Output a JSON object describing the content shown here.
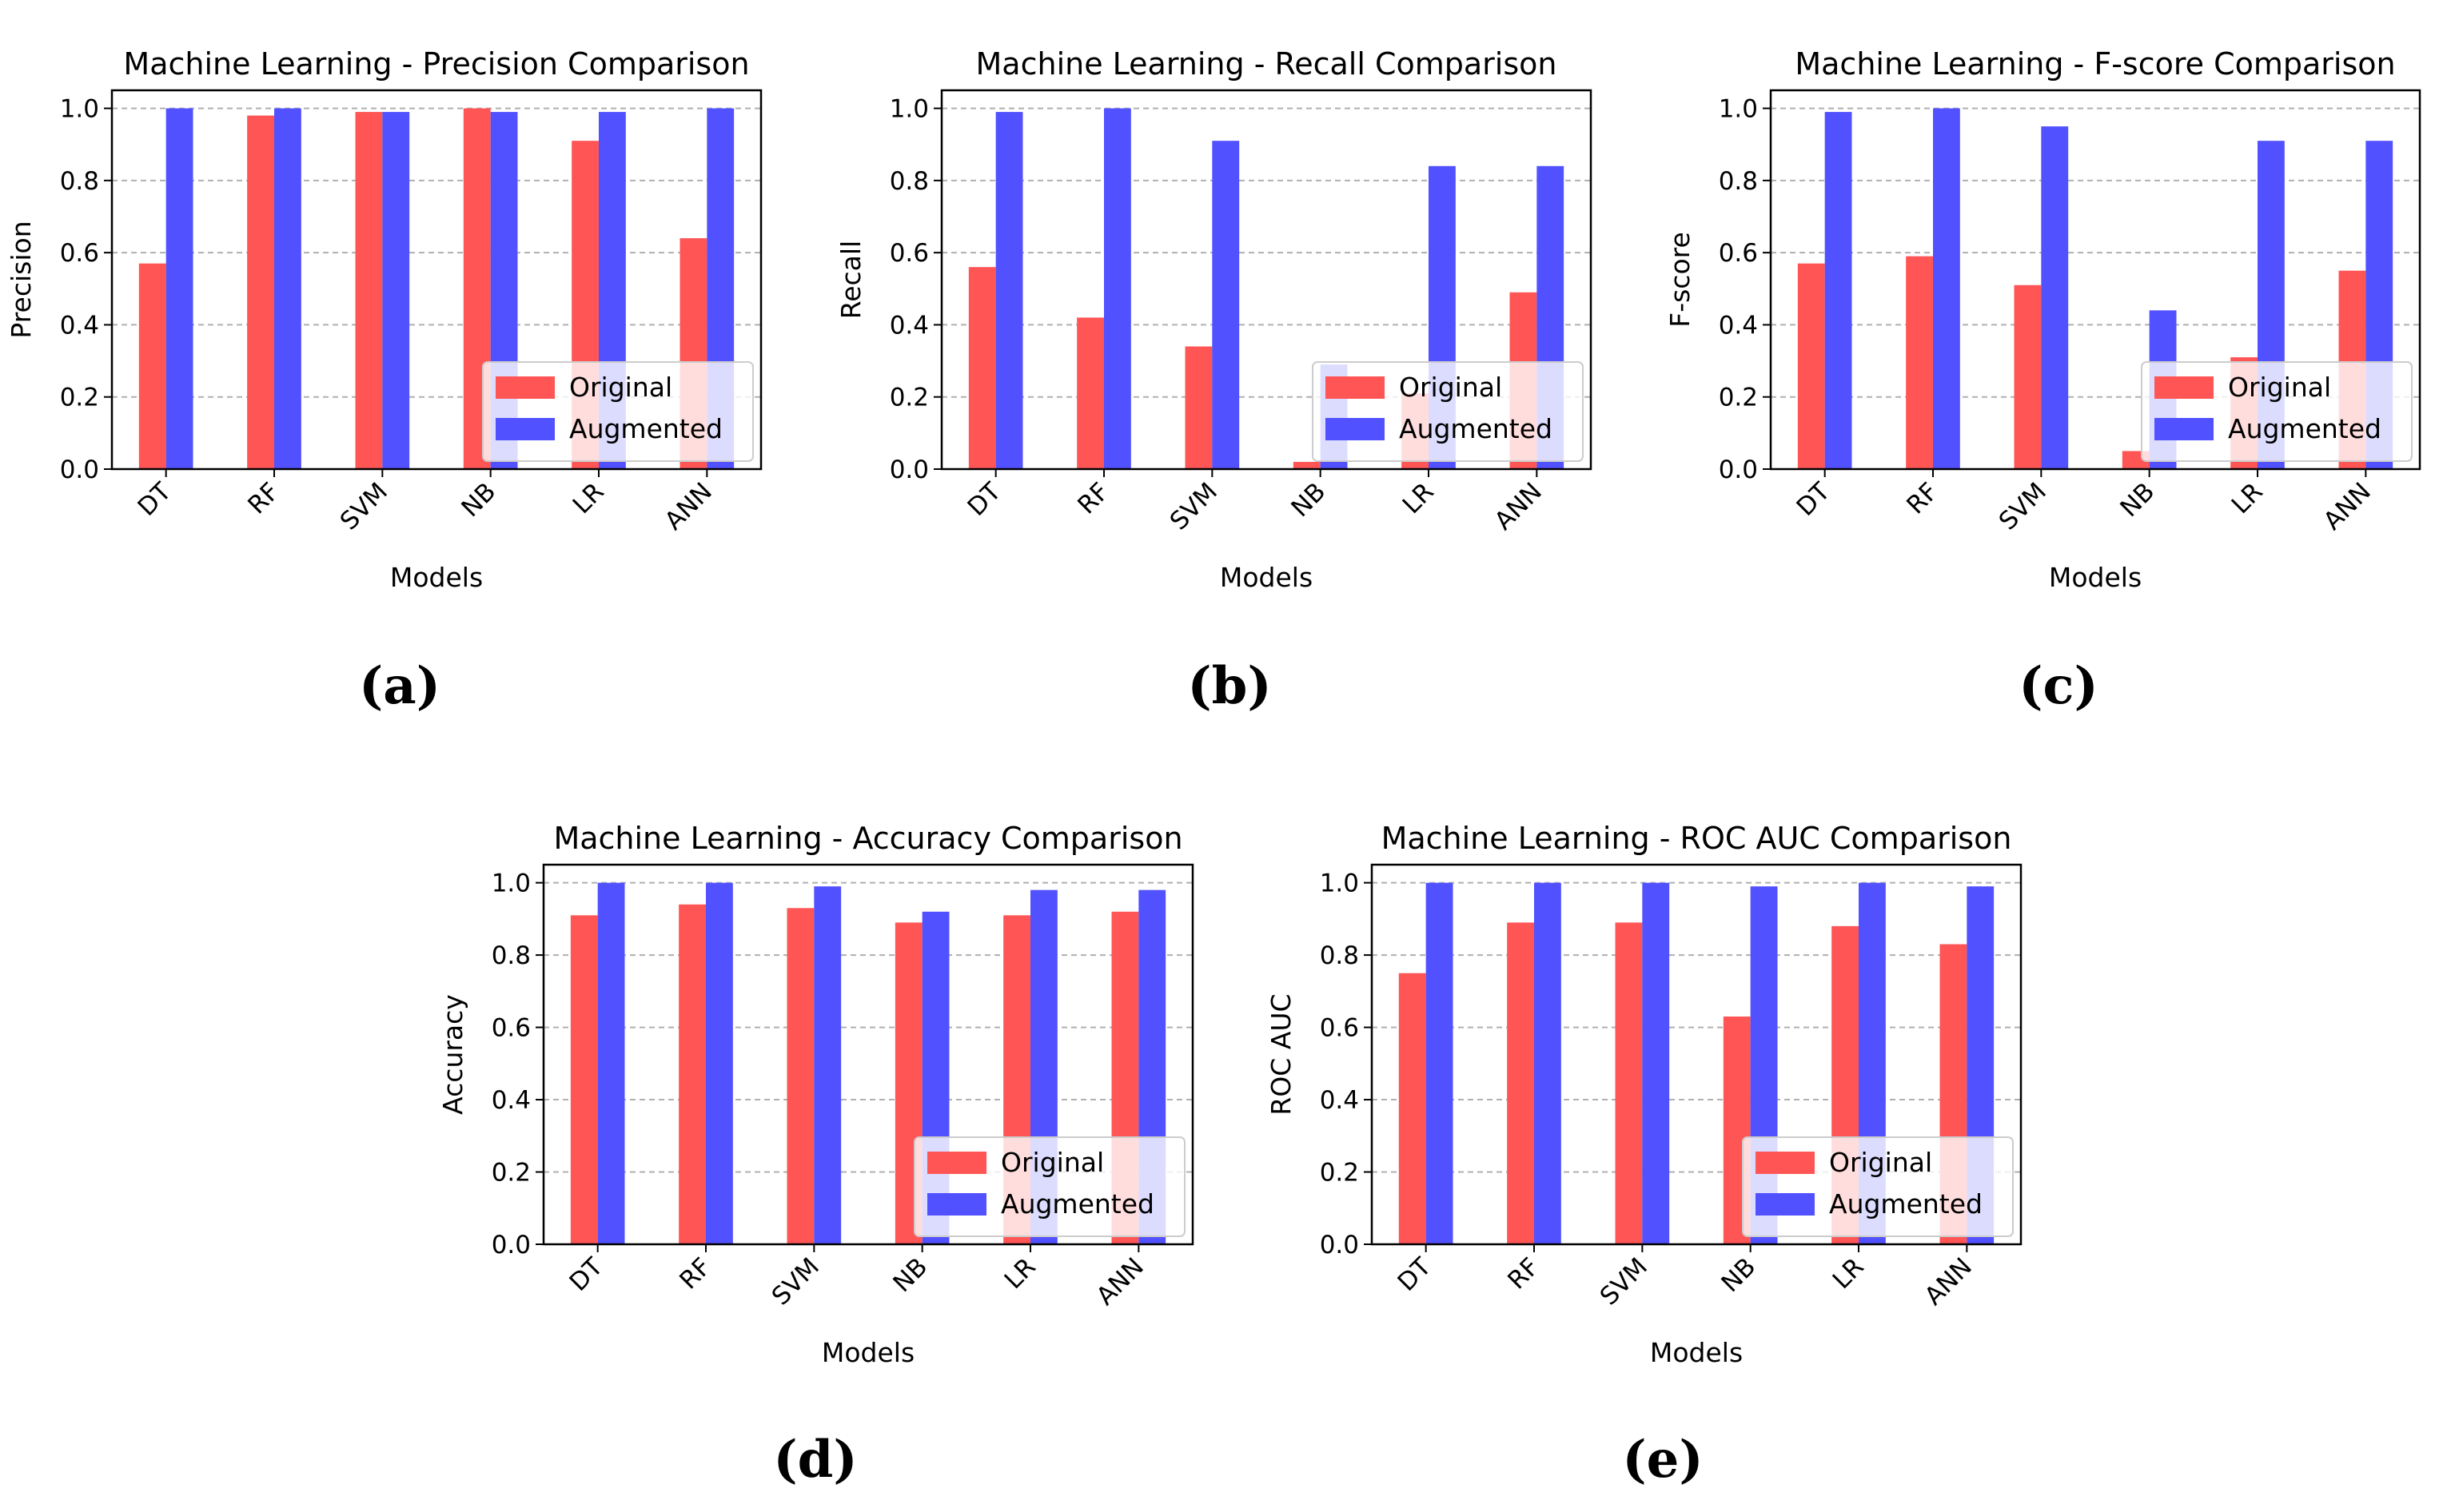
{
  "figure": {
    "panel_labels": [
      "(a)",
      "(b)",
      "(c)",
      "(d)",
      "(e)"
    ],
    "colors": {
      "original": "#ff5555",
      "augmented": "#5151ff"
    }
  },
  "chart_data": [
    {
      "type": "bar",
      "title": "Machine Learning - Precision Comparison",
      "xlabel": "Models",
      "ylabel": "Precision",
      "categories": [
        "DT",
        "RF",
        "SVM",
        "NB",
        "LR",
        "ANN"
      ],
      "series": [
        {
          "name": "Original",
          "values": [
            0.57,
            0.98,
            0.99,
            1.0,
            0.91,
            0.64
          ]
        },
        {
          "name": "Augmented",
          "values": [
            1.0,
            1.0,
            0.99,
            0.99,
            0.99,
            1.0
          ]
        }
      ],
      "ylim": [
        0,
        1.05
      ],
      "yticks": [
        "0.0",
        "0.2",
        "0.4",
        "0.6",
        "0.8",
        "1.0"
      ],
      "grid": "y-dashed",
      "legend": "lower right"
    },
    {
      "type": "bar",
      "title": "Machine Learning - Recall Comparison",
      "xlabel": "Models",
      "ylabel": "Recall",
      "categories": [
        "DT",
        "RF",
        "SVM",
        "NB",
        "LR",
        "ANN"
      ],
      "series": [
        {
          "name": "Original",
          "values": [
            0.56,
            0.42,
            0.34,
            0.02,
            0.21,
            0.49
          ]
        },
        {
          "name": "Augmented",
          "values": [
            0.99,
            1.0,
            0.91,
            0.29,
            0.84,
            0.84
          ]
        }
      ],
      "ylim": [
        0,
        1.05
      ],
      "yticks": [
        "0.0",
        "0.2",
        "0.4",
        "0.6",
        "0.8",
        "1.0"
      ],
      "grid": "y-dashed",
      "legend": "lower right"
    },
    {
      "type": "bar",
      "title": "Machine Learning - F-score Comparison",
      "xlabel": "Models",
      "ylabel": "F-score",
      "categories": [
        "DT",
        "RF",
        "SVM",
        "NB",
        "LR",
        "ANN"
      ],
      "series": [
        {
          "name": "Original",
          "values": [
            0.57,
            0.59,
            0.51,
            0.05,
            0.31,
            0.55
          ]
        },
        {
          "name": "Augmented",
          "values": [
            0.99,
            1.0,
            0.95,
            0.44,
            0.91,
            0.91
          ]
        }
      ],
      "ylim": [
        0,
        1.05
      ],
      "yticks": [
        "0.0",
        "0.2",
        "0.4",
        "0.6",
        "0.8",
        "1.0"
      ],
      "grid": "y-dashed",
      "legend": "lower right"
    },
    {
      "type": "bar",
      "title": "Machine Learning - Accuracy Comparison",
      "xlabel": "Models",
      "ylabel": "Accuracy",
      "categories": [
        "DT",
        "RF",
        "SVM",
        "NB",
        "LR",
        "ANN"
      ],
      "series": [
        {
          "name": "Original",
          "values": [
            0.91,
            0.94,
            0.93,
            0.89,
            0.91,
            0.92
          ]
        },
        {
          "name": "Augmented",
          "values": [
            1.0,
            1.0,
            0.99,
            0.92,
            0.98,
            0.98
          ]
        }
      ],
      "ylim": [
        0,
        1.05
      ],
      "yticks": [
        "0.0",
        "0.2",
        "0.4",
        "0.6",
        "0.8",
        "1.0"
      ],
      "grid": "y-dashed",
      "legend": "lower right"
    },
    {
      "type": "bar",
      "title": "Machine Learning - ROC AUC Comparison",
      "xlabel": "Models",
      "ylabel": "ROC AUC",
      "categories": [
        "DT",
        "RF",
        "SVM",
        "NB",
        "LR",
        "ANN"
      ],
      "series": [
        {
          "name": "Original",
          "values": [
            0.75,
            0.89,
            0.89,
            0.63,
            0.88,
            0.83
          ]
        },
        {
          "name": "Augmented",
          "values": [
            1.0,
            1.0,
            1.0,
            0.99,
            1.0,
            0.99
          ]
        }
      ],
      "ylim": [
        0,
        1.05
      ],
      "yticks": [
        "0.0",
        "0.2",
        "0.4",
        "0.6",
        "0.8",
        "1.0"
      ],
      "grid": "y-dashed",
      "legend": "lower right"
    }
  ]
}
